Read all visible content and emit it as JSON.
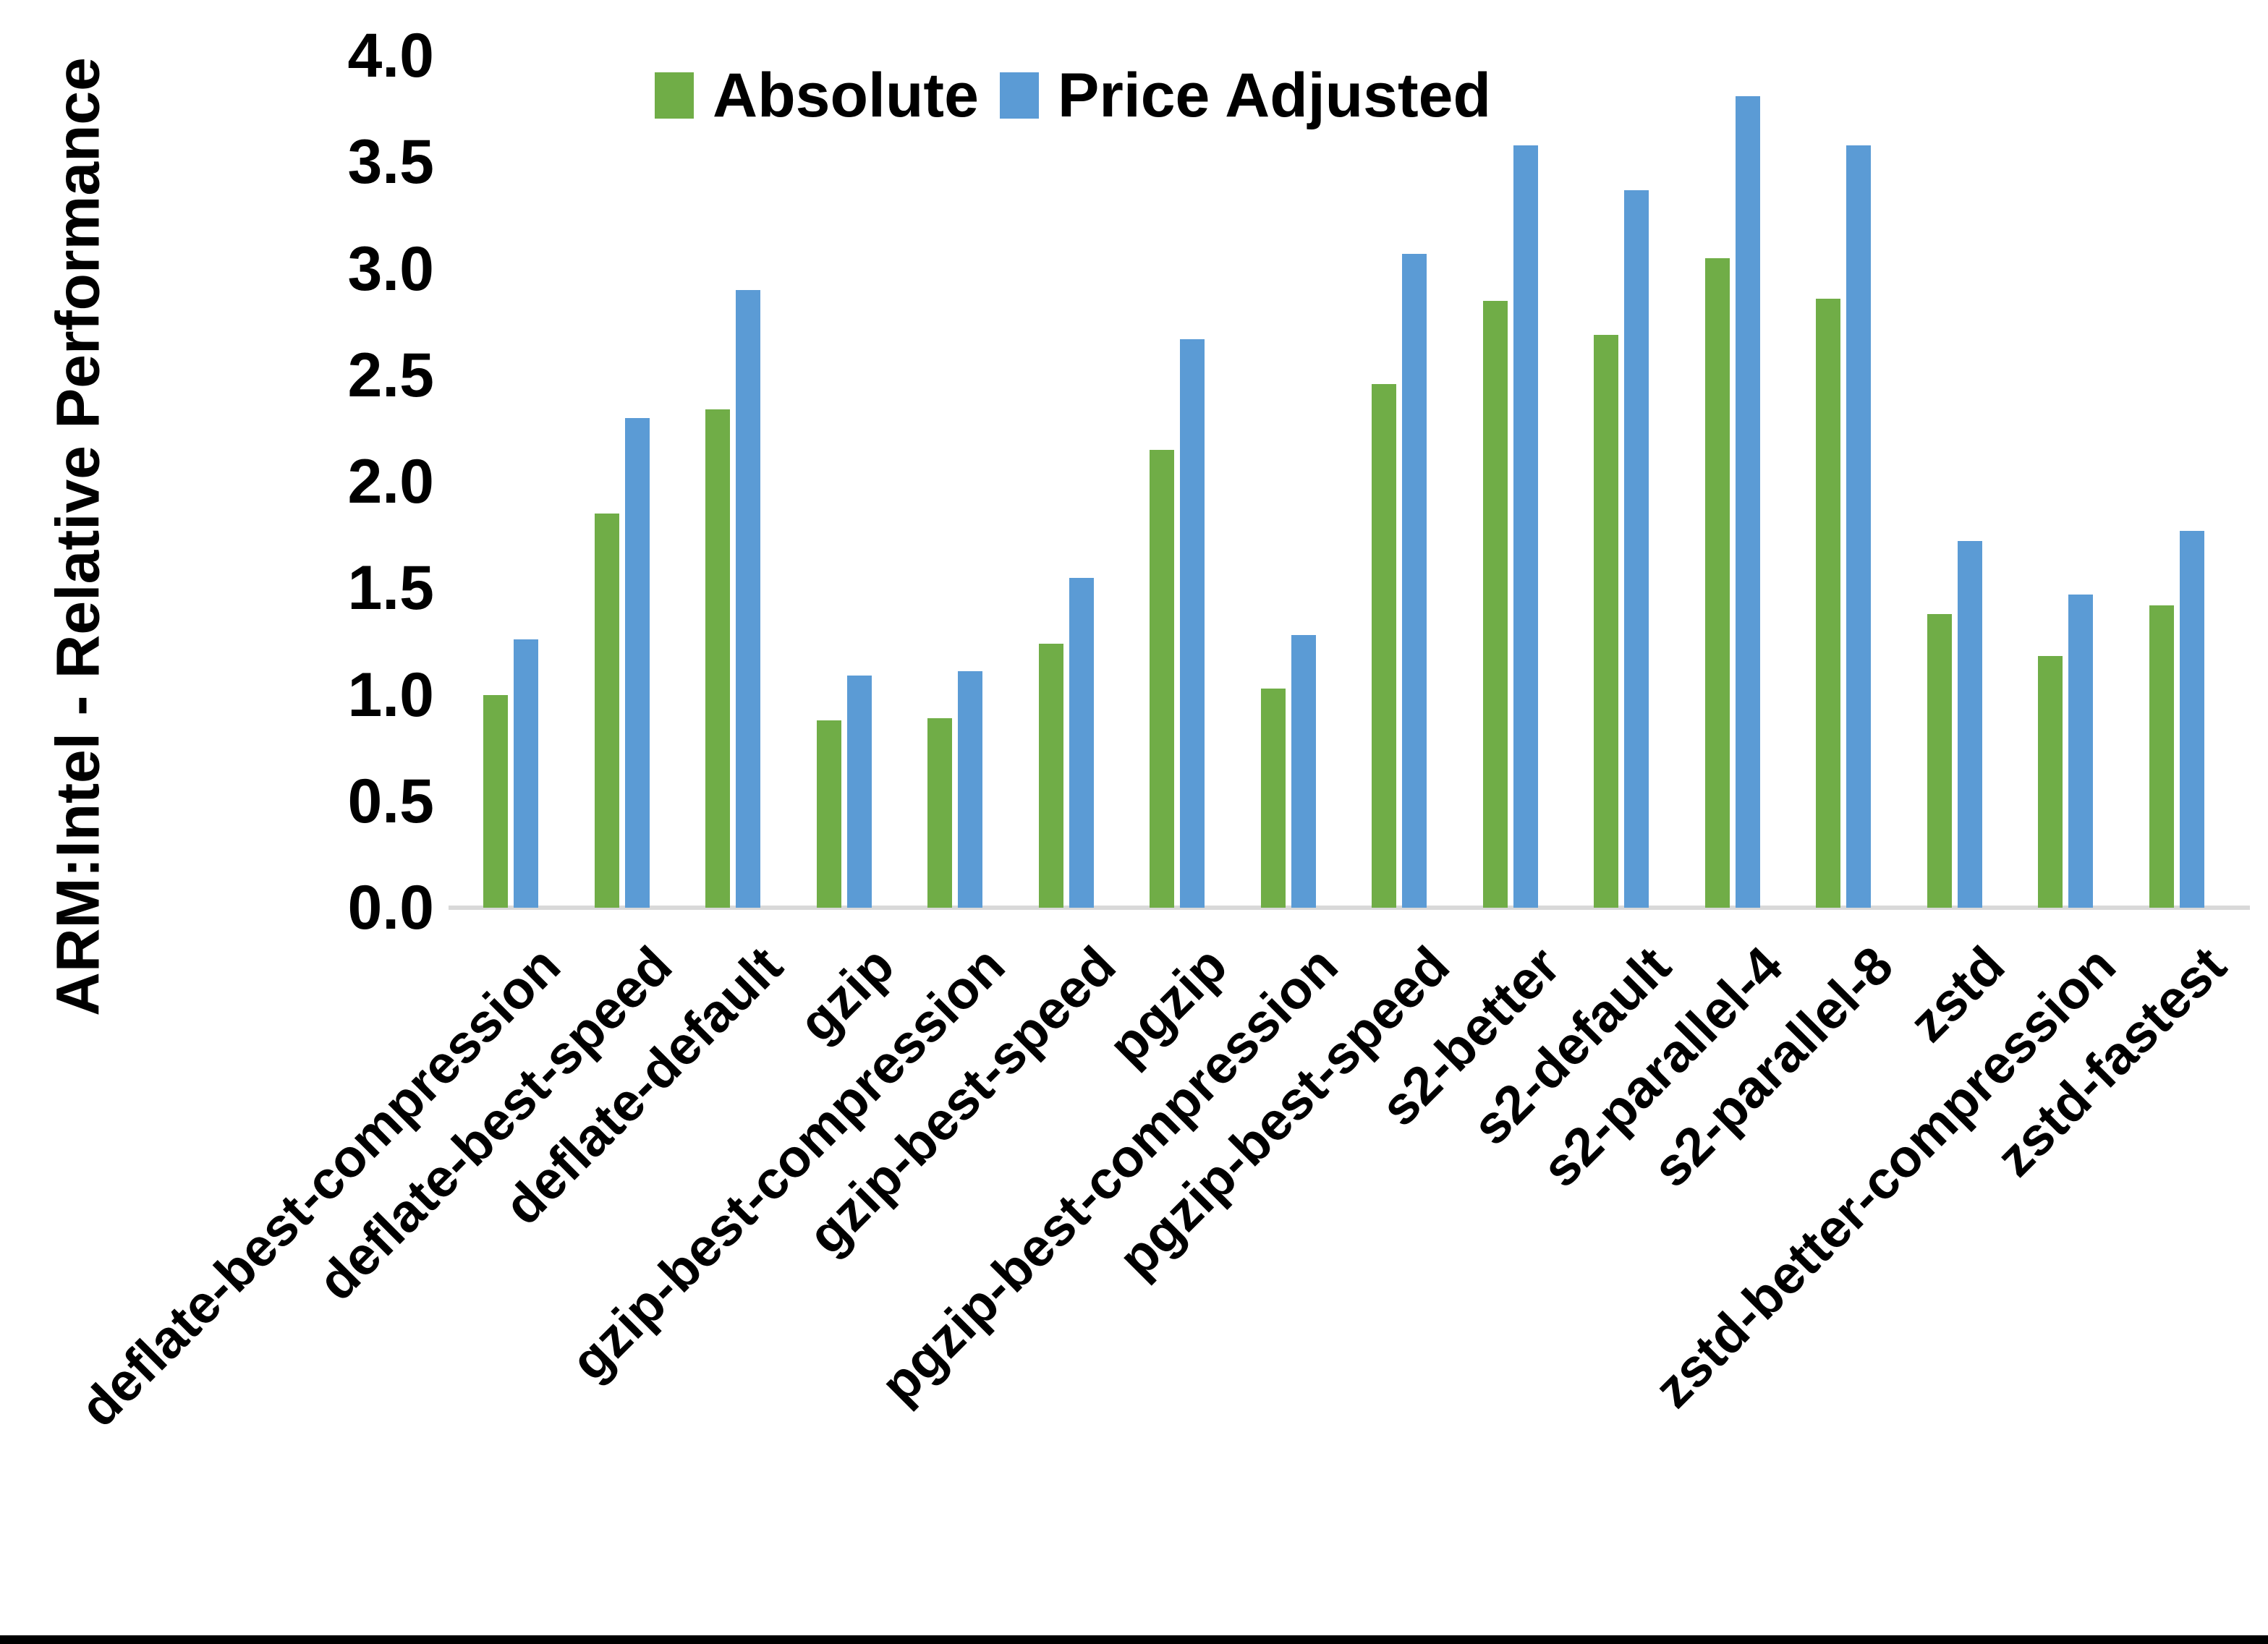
{
  "chart_data": {
    "type": "bar",
    "title": "",
    "ylabel": "ARM:Intel - Relative Performance",
    "xlabel": "",
    "ylim": [
      0.0,
      4.0
    ],
    "ytick_step": 0.5,
    "grid": false,
    "legend_position": "top-center",
    "categories": [
      "deflate-best-compression",
      "deflate-best-speed",
      "deflate-default",
      "gzip",
      "gzip-best-compression",
      "gzip-best-speed",
      "pgzip",
      "pgzip-best-compression",
      "pgzip-best-speed",
      "s2-better",
      "s2-default",
      "s2-parallel-4",
      "s2-parallel-8",
      "zstd",
      "zstd-better-compression",
      "zstd-fastest"
    ],
    "series": [
      {
        "name": "Absolute",
        "color": "#70AD47",
        "values": [
          1.0,
          1.85,
          2.34,
          0.88,
          0.89,
          1.24,
          2.15,
          1.03,
          2.46,
          2.85,
          2.69,
          3.05,
          2.86,
          1.38,
          1.18,
          1.42
        ]
      },
      {
        "name": "Price Adjusted",
        "color": "#5B9BD5",
        "values": [
          1.26,
          2.3,
          2.9,
          1.09,
          1.11,
          1.55,
          2.67,
          1.28,
          3.07,
          3.58,
          3.37,
          3.81,
          3.58,
          1.72,
          1.47,
          1.77
        ]
      }
    ]
  },
  "colors": {
    "background": "#FFFFFF",
    "axis_line": "#D9D9D9",
    "text": "#000000",
    "bottom_border": "#000000"
  }
}
